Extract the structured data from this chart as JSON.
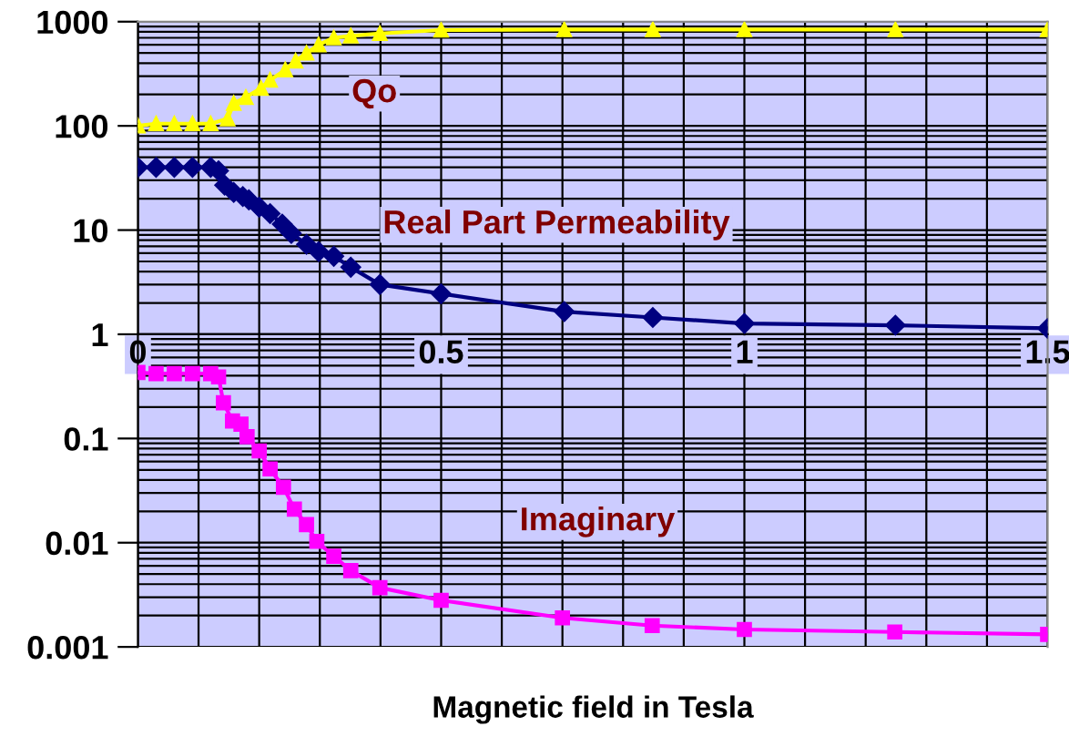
{
  "chart_data": {
    "type": "line",
    "xlabel": "Magnetic field in Tesla",
    "log": "y",
    "xlim": [
      0,
      1.5
    ],
    "ylim": [
      0.001,
      1000
    ],
    "xticks": [
      0,
      0.5,
      1,
      1.5
    ],
    "yticks": [
      0.001,
      0.01,
      0.1,
      1,
      10,
      100,
      1000
    ],
    "grid": true,
    "legend": false,
    "series": [
      {
        "name": "Qo",
        "color": "#ffff00",
        "marker": "triangle",
        "x": [
          0,
          0.03,
          0.06,
          0.09,
          0.12,
          0.148,
          0.158,
          0.178,
          0.203,
          0.218,
          0.243,
          0.26,
          0.278,
          0.298,
          0.323,
          0.351,
          0.399,
          0.5,
          0.703,
          0.849,
          1.0,
          1.249,
          1.5
        ],
        "values": [
          100,
          105,
          105,
          105,
          105,
          117,
          165,
          188,
          230,
          275,
          345,
          420,
          500,
          600,
          700,
          730,
          770,
          830,
          840,
          840,
          840,
          840,
          840
        ]
      },
      {
        "name": "Real Part Permeability",
        "color": "#000080",
        "marker": "diamond",
        "x": [
          0,
          0.03,
          0.06,
          0.09,
          0.12,
          0.133,
          0.143,
          0.158,
          0.173,
          0.183,
          0.2,
          0.218,
          0.238,
          0.253,
          0.278,
          0.298,
          0.323,
          0.351,
          0.399,
          0.5,
          0.703,
          0.849,
          1.0,
          1.249,
          1.5
        ],
        "values": [
          40,
          40,
          40,
          40,
          40,
          37,
          27,
          23,
          21,
          19.5,
          16.6,
          14.4,
          11.4,
          9.3,
          7.3,
          6.2,
          5.6,
          4.4,
          3.0,
          2.45,
          1.65,
          1.45,
          1.27,
          1.22,
          1.14
        ]
      },
      {
        "name": "Imaginary",
        "color": "#ff00ff",
        "marker": "square",
        "x": [
          0,
          0.03,
          0.06,
          0.09,
          0.12,
          0.133,
          0.141,
          0.156,
          0.17,
          0.18,
          0.2,
          0.218,
          0.24,
          0.258,
          0.278,
          0.295,
          0.323,
          0.351,
          0.399,
          0.5,
          0.7,
          0.848,
          1.0,
          1.248,
          1.5
        ],
        "values": [
          0.43,
          0.42,
          0.42,
          0.42,
          0.42,
          0.39,
          0.22,
          0.147,
          0.137,
          0.104,
          0.076,
          0.051,
          0.034,
          0.021,
          0.0149,
          0.0103,
          0.0074,
          0.0054,
          0.0037,
          0.0028,
          0.0019,
          0.0016,
          0.00147,
          0.00139,
          0.00132
        ]
      }
    ]
  }
}
